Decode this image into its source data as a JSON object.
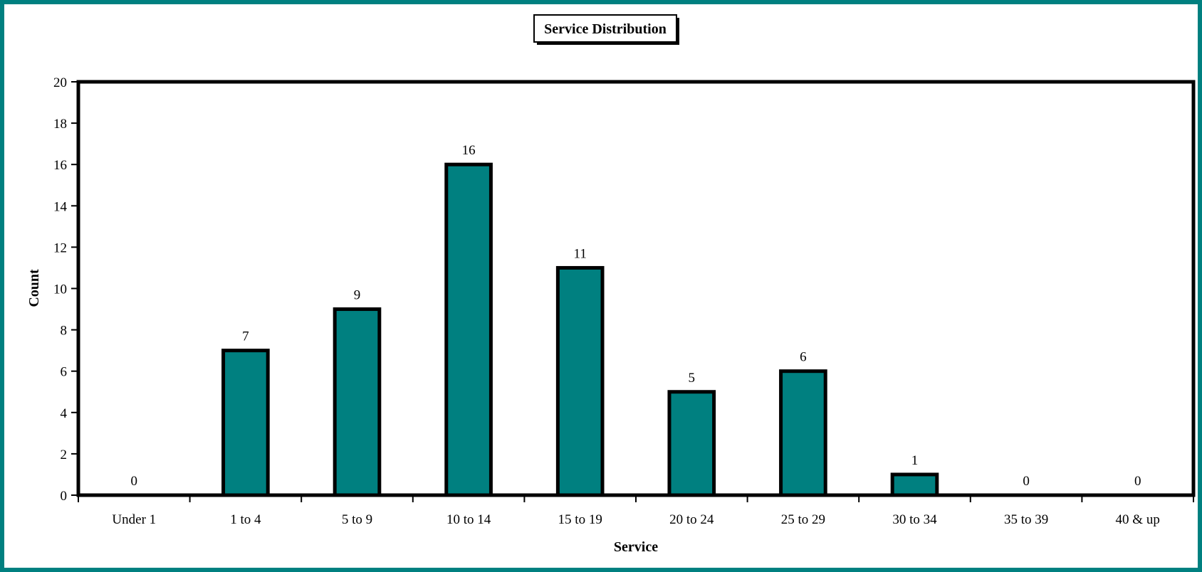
{
  "chart_data": {
    "type": "bar",
    "title": "Service Distribution",
    "xlabel": "Service",
    "ylabel": "Count",
    "categories": [
      "Under 1",
      "1 to 4",
      "5 to 9",
      "10 to 14",
      "15 to 19",
      "20 to 24",
      "25 to 29",
      "30 to 34",
      "35 to 39",
      "40 & up"
    ],
    "values": [
      0,
      7,
      9,
      16,
      11,
      5,
      6,
      1,
      0,
      0
    ],
    "ylim": [
      0,
      20
    ],
    "yticks": [
      0,
      2,
      4,
      6,
      8,
      10,
      12,
      14,
      16,
      18,
      20
    ],
    "grid": false,
    "legend": "none",
    "data_labels": true,
    "colors": {
      "bar": "#008080",
      "frame": "#008080",
      "outline": "#000000"
    }
  }
}
